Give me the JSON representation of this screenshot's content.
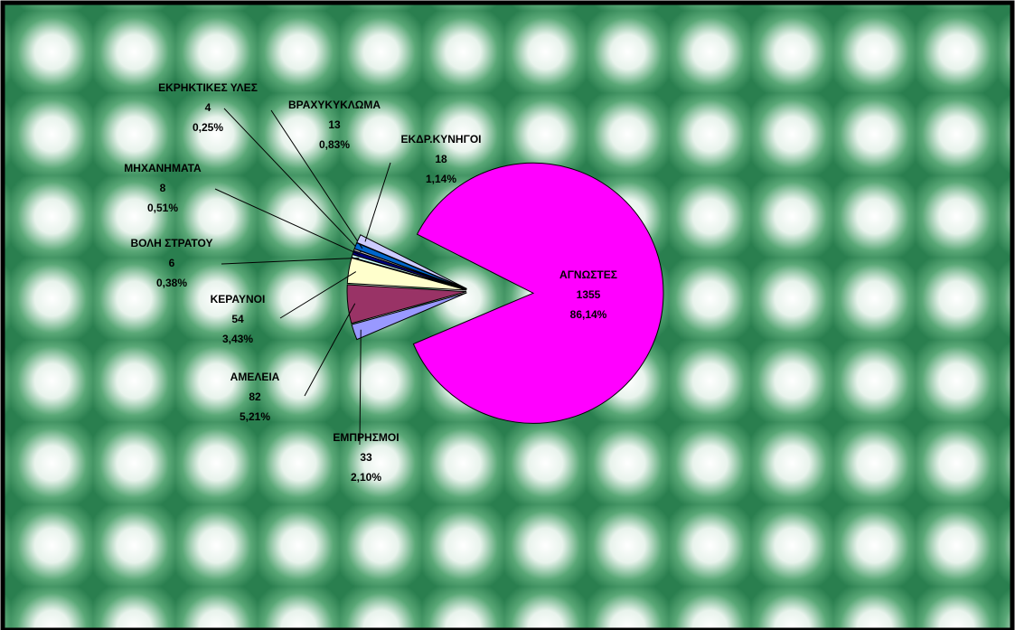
{
  "chart_data": {
    "type": "pie",
    "categories": [
      "ΕΜΠΡΗΣΜΟΙ",
      "ΑΜΕΛΕΙΑ",
      "ΚΕΡΑΥΝΟΙ",
      "ΒΟΛΗ ΣΤΡΑΤΟΥ",
      "ΜΗΧΑΝΗΜΑΤΑ",
      "ΕΚΡΗΚΤΙΚΕΣ ΥΛΕΣ",
      "ΒΡΑΧΥΚΥΚΛΩΜΑ",
      "ΕΚΔΡ.ΚΥΝΗΓΟΙ",
      "ΑΓΝΩΣΤΕΣ"
    ],
    "values": [
      33,
      82,
      54,
      6,
      8,
      4,
      13,
      18,
      1355
    ],
    "percent_labels": [
      "2,10%",
      "5,21%",
      "3,43%",
      "0,38%",
      "0,51%",
      "0,25%",
      "0,83%",
      "1,14%",
      "86,14%"
    ],
    "colors": [
      "#9999ff",
      "#993366",
      "#ffffcc",
      "#ccffff",
      "#000080",
      "#c0c0c0",
      "#0066cc",
      "#ccccff",
      "#ff00ff"
    ]
  }
}
